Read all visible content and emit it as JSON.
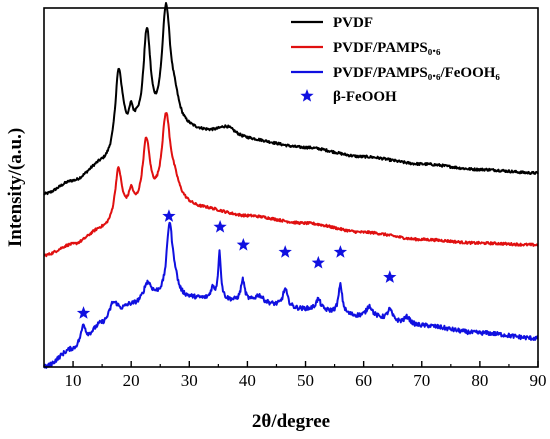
{
  "chart_data": {
    "type": "line",
    "xlabel": "2θ/degree",
    "ylabel": "Intensity/(a.u.)",
    "xlim": [
      5,
      90
    ],
    "ylim": [
      0,
      100
    ],
    "x_ticks": [
      10,
      20,
      30,
      40,
      50,
      60,
      70,
      80,
      90
    ],
    "grid": false,
    "y_tick_labels": false,
    "legend": "top-right",
    "series": [
      {
        "name": "PVDF",
        "color": "#000000",
        "baseline": [
          [
            5,
            48
          ],
          [
            10,
            51.5
          ],
          [
            15,
            56
          ],
          [
            20,
            60
          ],
          [
            30,
            65
          ],
          [
            40,
            63
          ],
          [
            50,
            61
          ],
          [
            60,
            58.5
          ],
          [
            70,
            56.5
          ],
          [
            80,
            55
          ],
          [
            90,
            54
          ]
        ],
        "peaks": [
          [
            17.8,
            20,
            0.7
          ],
          [
            18.5,
            5,
            0.8
          ],
          [
            20.0,
            7,
            0.5
          ],
          [
            21.0,
            3,
            0.5
          ],
          [
            22.7,
            30,
            0.8
          ],
          [
            26.0,
            34,
            0.9
          ],
          [
            27.5,
            6,
            1.0
          ],
          [
            36.5,
            3,
            2.0
          ]
        ]
      },
      {
        "name": "PVDF/PAMPS₀.₆",
        "color": "#e01010",
        "baseline": [
          [
            5,
            31
          ],
          [
            10,
            34
          ],
          [
            15,
            38
          ],
          [
            20,
            42
          ],
          [
            28,
            45
          ],
          [
            32,
            44
          ],
          [
            40,
            42
          ],
          [
            50,
            40
          ],
          [
            60,
            37.5
          ],
          [
            70,
            35.5
          ],
          [
            80,
            34.5
          ],
          [
            90,
            34
          ]
        ],
        "peaks": [
          [
            17.8,
            14,
            0.7
          ],
          [
            20.0,
            5,
            0.5
          ],
          [
            22.6,
            19,
            0.8
          ],
          [
            26.0,
            24,
            0.9
          ],
          [
            27.5,
            4,
            1.0
          ]
        ]
      },
      {
        "name": "PVDF/PAMPS₀.₆/FeOOH₆",
        "color": "#1010e0",
        "baseline": [
          [
            5,
            0
          ],
          [
            10,
            5
          ],
          [
            12,
            8
          ],
          [
            15,
            12
          ],
          [
            17,
            14
          ],
          [
            20,
            17
          ],
          [
            25,
            19
          ],
          [
            30,
            19
          ],
          [
            35,
            18.5
          ],
          [
            40,
            18
          ],
          [
            50,
            16
          ],
          [
            60,
            14
          ],
          [
            70,
            11.5
          ],
          [
            80,
            9.5
          ],
          [
            90,
            8
          ]
        ],
        "peaks": [
          [
            11.8,
            4,
            0.4
          ],
          [
            16.8,
            3,
            0.6
          ],
          [
            17.5,
            2,
            0.6
          ],
          [
            22.8,
            5,
            0.8
          ],
          [
            26.6,
            20,
            0.6
          ],
          [
            27.5,
            4,
            0.6
          ],
          [
            34.0,
            3,
            0.4
          ],
          [
            35.2,
            13,
            0.3
          ],
          [
            39.2,
            6,
            0.4
          ],
          [
            42.0,
            2,
            0.8
          ],
          [
            46.5,
            5,
            0.5
          ],
          [
            52.2,
            3,
            0.5
          ],
          [
            56.0,
            8,
            0.4
          ],
          [
            61.0,
            3,
            0.6
          ],
          [
            64.5,
            3,
            0.5
          ],
          [
            67.5,
            2,
            0.6
          ]
        ]
      }
    ],
    "markers": {
      "name": "β-FeOOH",
      "color": "#1010e0",
      "symbol": "star",
      "points": [
        [
          11.8,
          15
        ],
        [
          26.5,
          42
        ],
        [
          35.3,
          39
        ],
        [
          39.3,
          34
        ],
        [
          46.5,
          32
        ],
        [
          52.2,
          29
        ],
        [
          56.0,
          32
        ],
        [
          64.5,
          25
        ]
      ]
    }
  }
}
